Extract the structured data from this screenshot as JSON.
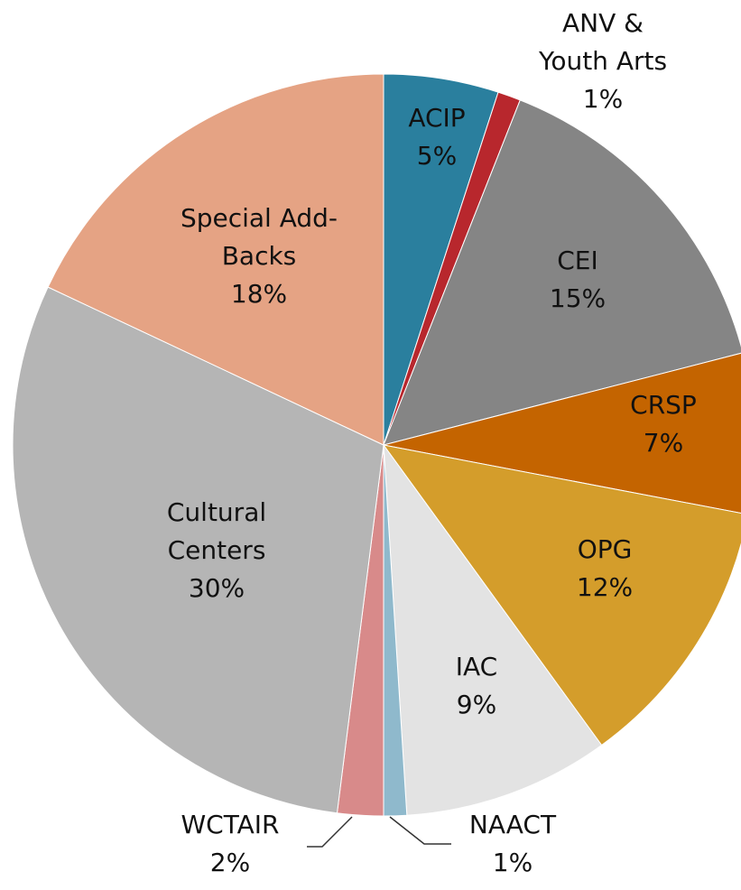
{
  "chart_data": {
    "type": "pie",
    "categories": [
      "ACIP",
      "ANV & Youth Arts",
      "CEI",
      "CRSP",
      "OPG",
      "IAC",
      "NAACT",
      "WCTAIR",
      "Cultural Centers",
      "Special Add-Backs"
    ],
    "values": [
      5,
      1,
      15,
      7,
      12,
      9,
      1,
      2,
      30,
      18
    ],
    "value_labels": [
      "5%",
      "1%",
      "15%",
      "7%",
      "12%",
      "9%",
      "1%",
      "2%",
      "30%",
      "18%"
    ],
    "colors": [
      "#2a7f9e",
      "#b8272d",
      "#858585",
      "#c46400",
      "#d49d2b",
      "#e3e3e3",
      "#8fb9cc",
      "#d88a8a",
      "#b5b5b5",
      "#e5a384"
    ]
  }
}
